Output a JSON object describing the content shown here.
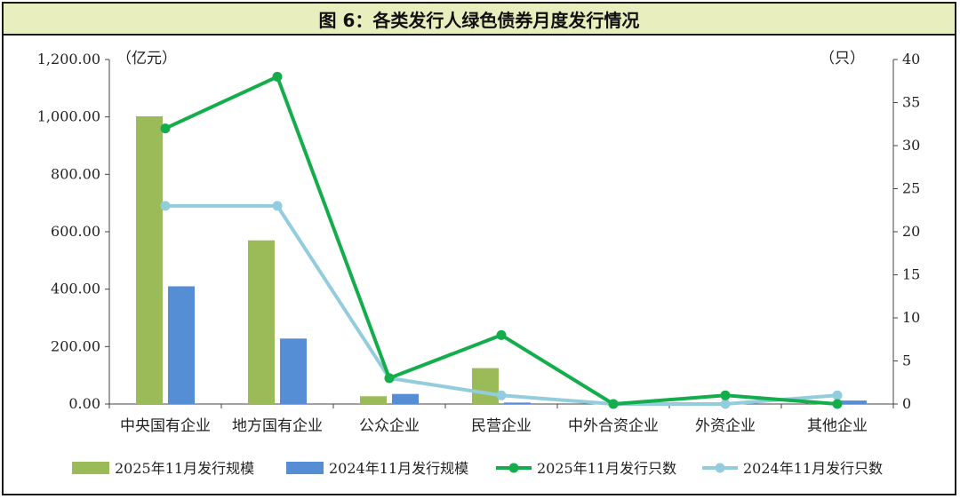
{
  "title": "图 6：各类发行人绿色债券月度发行情况",
  "chart_data": {
    "type": "bar",
    "categories": [
      "中央国有企业",
      "地方国有企业",
      "公众企业",
      "民营企业",
      "中外合资企业",
      "外资企业",
      "其他企业"
    ],
    "y_left": {
      "unit_label": "（亿元）",
      "ylim": [
        0,
        1200
      ],
      "ticks": [
        "0.00",
        "200.00",
        "400.00",
        "600.00",
        "800.00",
        "1,000.00",
        "1,200.00"
      ],
      "tick_values": [
        0,
        200,
        400,
        600,
        800,
        1000,
        1200
      ]
    },
    "y_right": {
      "unit_label": "（只）",
      "ylim": [
        0,
        40
      ],
      "ticks": [
        "0",
        "5",
        "10",
        "15",
        "20",
        "25",
        "30",
        "35",
        "40"
      ],
      "tick_values": [
        0,
        5,
        10,
        15,
        20,
        25,
        30,
        35,
        40
      ]
    },
    "series": [
      {
        "name": "2025年11月发行规模",
        "kind": "bar",
        "axis": "left",
        "color": "#9bbb59",
        "values": [
          1002,
          570,
          27,
          125,
          0,
          3,
          2
        ]
      },
      {
        "name": "2024年11月发行规模",
        "kind": "bar",
        "axis": "left",
        "color": "#558ed5",
        "values": [
          410,
          228,
          35,
          5,
          0,
          4,
          12
        ]
      },
      {
        "name": "2025年11月发行只数",
        "kind": "line",
        "axis": "right",
        "color": "#13ad4c",
        "values": [
          32,
          38,
          3,
          8,
          0,
          1,
          0
        ]
      },
      {
        "name": "2024年11月发行只数",
        "kind": "line",
        "axis": "right",
        "color": "#93cddd",
        "values": [
          23,
          23,
          3,
          1,
          0,
          0,
          1
        ]
      }
    ],
    "grid": false,
    "legend": "bottom"
  }
}
